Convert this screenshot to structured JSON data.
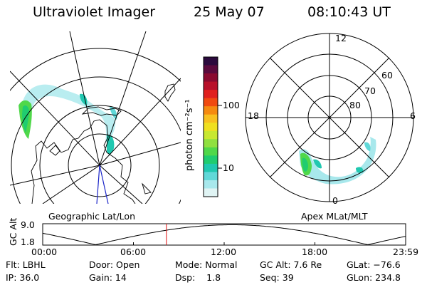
{
  "header": {
    "title": "Ultraviolet Imager",
    "date": "25 May 07",
    "time": "08:10:43 UT"
  },
  "left_panel": {
    "label": "Geographic Lat/Lon"
  },
  "right_panel": {
    "label": "Apex MLat/MLT",
    "mlt_labels": {
      "top": "12",
      "left": "18",
      "right": "6",
      "bottom": "0"
    },
    "lat_labels": [
      "60",
      "70",
      "80"
    ]
  },
  "colorbar": {
    "label": "photon cm⁻²s⁻¹",
    "ticks": [
      "100",
      "10"
    ],
    "colors": [
      "#2b0a3d",
      "#5a0a3d",
      "#8a0a30",
      "#b8102a",
      "#e0201e",
      "#f04a10",
      "#f58a10",
      "#f8c020",
      "#f0e020",
      "#c8e830",
      "#90e040",
      "#50d84a",
      "#20cc70",
      "#20c8b0",
      "#60d8d8",
      "#a8e8ec",
      "#e0f4f4"
    ]
  },
  "timeline": {
    "ylabel": "GC Alt",
    "ymax": "9.0",
    "ymin": "1.8",
    "xticks": [
      "00:00",
      "06:00",
      "12:00",
      "18:00",
      "23:59"
    ],
    "current_time_hours": 8.18
  },
  "info": {
    "row1": [
      "Flt: LBHL",
      "Door: Open",
      "Mode: Normal",
      "GC Alt: 7.6 Re",
      "GLat: −76.6"
    ],
    "row2": [
      "IP: 36.0",
      "Gain: 14",
      "Dsp:    1.8",
      "Seq: 39",
      "GLon: 234.8"
    ]
  }
}
